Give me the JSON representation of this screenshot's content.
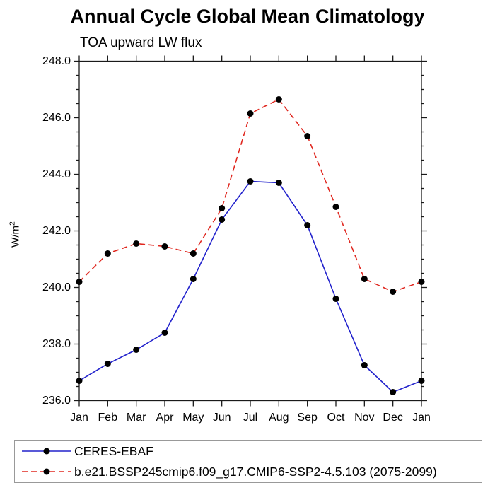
{
  "title": "Annual Cycle Global Mean Climatology",
  "subtitle": "TOA upward LW flux",
  "chart_data": {
    "type": "line",
    "categories": [
      "Jan",
      "Feb",
      "Mar",
      "Apr",
      "May",
      "Jun",
      "Jul",
      "Aug",
      "Sep",
      "Oct",
      "Nov",
      "Dec",
      "Jan"
    ],
    "xlabel": "",
    "ylabel": "W/m²",
    "ylim": [
      236.0,
      248.0
    ],
    "ytick_step": 2.0,
    "yminor_step": 0.5,
    "ytick_format_decimals": 1,
    "grid": false,
    "legend_position": "bottom-left-box",
    "frame_color": "#1a1a1a",
    "marker_color": "#000000",
    "series": [
      {
        "name": "CERES-EBAF",
        "color": "#2222cc",
        "style": "solid",
        "marker": "filled-circle",
        "values": [
          236.7,
          237.3,
          237.8,
          238.4,
          240.3,
          242.4,
          243.75,
          243.7,
          242.2,
          239.6,
          237.25,
          236.3,
          236.7
        ]
      },
      {
        "name": "b.e21.BSSP245cmip6.f09_g17.CMIP6-SSP2-4.5.103 (2075-2099)",
        "color": "#e02820",
        "style": "dashed",
        "marker": "filled-circle",
        "values": [
          240.2,
          241.2,
          241.55,
          241.45,
          241.2,
          242.8,
          246.15,
          246.65,
          245.35,
          242.85,
          240.3,
          239.85,
          240.2
        ]
      }
    ]
  }
}
